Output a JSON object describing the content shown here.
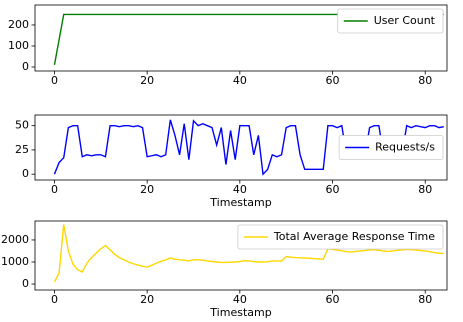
{
  "chart_data": [
    {
      "type": "line",
      "x": [
        0,
        1,
        2,
        84
      ],
      "xlim": [
        -4.2,
        84.7
      ],
      "xticks": [
        0,
        20,
        40,
        60,
        80
      ],
      "ylim": [
        -19,
        295
      ],
      "yticks": [
        0,
        100,
        200
      ],
      "legend": "upper right",
      "series": [
        {
          "name": "User Count",
          "color": "#008000",
          "values": [
            10,
            130,
            250,
            250
          ]
        }
      ]
    },
    {
      "type": "line",
      "xlabel": "Timestamp",
      "x": [
        0,
        1,
        2,
        3,
        4,
        5,
        6,
        7,
        8,
        9,
        10,
        11,
        12,
        13,
        14,
        15,
        16,
        17,
        18,
        19,
        20,
        21,
        22,
        23,
        24,
        25,
        26,
        27,
        28,
        29,
        30,
        31,
        32,
        33,
        34,
        35,
        36,
        37,
        38,
        39,
        40,
        41,
        42,
        43,
        44,
        45,
        46,
        47,
        48,
        49,
        50,
        51,
        52,
        53,
        54,
        55,
        56,
        57,
        58,
        59,
        60,
        61,
        62,
        63,
        64,
        65,
        66,
        67,
        68,
        69,
        70,
        71,
        72,
        73,
        74,
        75,
        76,
        77,
        78,
        79,
        80,
        81,
        82,
        83,
        84
      ],
      "xlim": [
        -4.2,
        84.7
      ],
      "xticks": [
        0,
        20,
        40,
        60,
        80
      ],
      "ylim": [
        -6,
        61
      ],
      "yticks": [
        0,
        25,
        50
      ],
      "legend": "center right",
      "series": [
        {
          "name": "Requests/s",
          "color": "#0000ff",
          "values": [
            0,
            12,
            17,
            48,
            50,
            50,
            18,
            20,
            19,
            20,
            20,
            18,
            50,
            50,
            49,
            50,
            50,
            49,
            50,
            48,
            18,
            19,
            20,
            18,
            20,
            56,
            40,
            20,
            52,
            15,
            55,
            50,
            52,
            50,
            48,
            30,
            48,
            10,
            45,
            15,
            50,
            50,
            50,
            20,
            40,
            0,
            5,
            20,
            18,
            20,
            48,
            50,
            50,
            20,
            5,
            5,
            5,
            5,
            5,
            50,
            50,
            48,
            50,
            20,
            18,
            20,
            19,
            20,
            48,
            50,
            50,
            20,
            18,
            20,
            19,
            20,
            50,
            48,
            50,
            49,
            48,
            50,
            50,
            48,
            49
          ]
        }
      ]
    },
    {
      "type": "line",
      "xlabel": "Timestamp",
      "x": [
        0,
        1,
        2,
        3,
        4,
        5,
        6,
        7,
        8,
        9,
        10,
        11,
        12,
        13,
        14,
        15,
        16,
        17,
        18,
        19,
        20,
        21,
        22,
        23,
        24,
        25,
        26,
        27,
        28,
        29,
        30,
        31,
        32,
        33,
        34,
        35,
        36,
        37,
        38,
        39,
        40,
        41,
        42,
        43,
        44,
        45,
        46,
        47,
        48,
        49,
        50,
        51,
        52,
        53,
        54,
        55,
        56,
        57,
        58,
        59,
        60,
        61,
        62,
        63,
        64,
        65,
        66,
        67,
        68,
        69,
        70,
        71,
        72,
        73,
        74,
        75,
        76,
        77,
        78,
        79,
        80,
        81,
        82,
        83,
        84
      ],
      "xlim": [
        -4.2,
        84.7
      ],
      "xticks": [
        0,
        20,
        40,
        60,
        80
      ],
      "ylim": [
        -270,
        2860
      ],
      "yticks": [
        0,
        1000,
        2000
      ],
      "legend": "upper right",
      "series": [
        {
          "name": "Total Average Response Time",
          "color": "#ffd700",
          "values": [
            100,
            500,
            2700,
            1500,
            900,
            650,
            550,
            950,
            1200,
            1400,
            1600,
            1750,
            1550,
            1350,
            1200,
            1100,
            1000,
            920,
            860,
            810,
            770,
            850,
            950,
            1030,
            1100,
            1180,
            1130,
            1100,
            1080,
            1050,
            1100,
            1100,
            1080,
            1050,
            1020,
            1000,
            980,
            980,
            990,
            1000,
            1020,
            1060,
            1050,
            1020,
            1000,
            1000,
            1010,
            1050,
            1050,
            1040,
            1250,
            1220,
            1200,
            1190,
            1180,
            1170,
            1150,
            1140,
            1130,
            1600,
            1570,
            1540,
            1510,
            1470,
            1450,
            1480,
            1500,
            1520,
            1550,
            1560,
            1530,
            1500,
            1480,
            1500,
            1530,
            1550,
            1570,
            1560,
            1540,
            1520,
            1500,
            1470,
            1430,
            1400,
            1380
          ]
        }
      ]
    }
  ]
}
